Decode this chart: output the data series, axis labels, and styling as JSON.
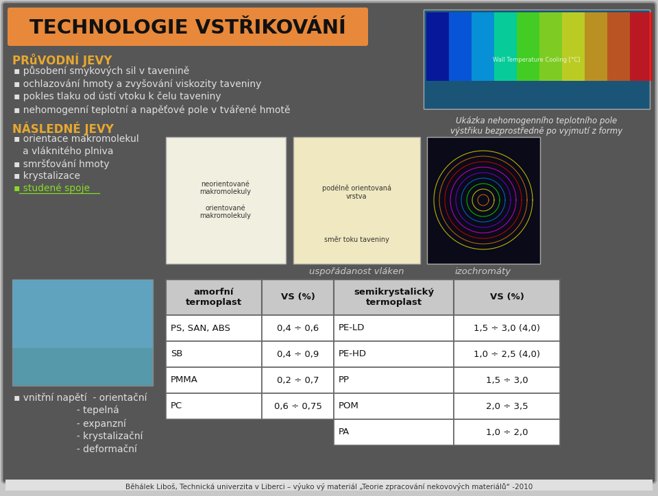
{
  "fig_w": 9.6,
  "fig_h": 7.24,
  "bg_outer": "#c8c8c8",
  "bg_main": "#565656",
  "bg_main_edge": "#999999",
  "title_text": "TECHNOLOGIE VSTŘIKOVÁNÍ",
  "title_bg": "#e8883a",
  "title_color": "#111111",
  "orange_label_color": "#e8a830",
  "white_text": "#e0e0e0",
  "green_link": "#88dd22",
  "section1_label": "PRůVODNÍ JEVY",
  "section1_items": [
    "působení smykových sil v tavenině",
    "ochlazování hmoty a zvyšování viskozity taveniny",
    "pokles tlaku od ústí vtoku k čelu taveniny",
    "nehomogenní teplotní a napěťové pole v tvářené hmotě"
  ],
  "section2_label": "NÁSLEDNÉ JEVY",
  "section3_lines": [
    "▪ vnitrní napětí  - orientační",
    "                     - tepelná",
    "                     - expanzní",
    "                     - krystalizační",
    "                     - deformační"
  ],
  "img_caption_tr": "Ukázka nehomogenního teplotního pole\nvýstřiku bezprostředně po vyjmutí z formy",
  "label_usporadanost": "uspořádanost vláken",
  "label_izochromaty": "izochromáty",
  "table_col1_hdr": "amorfní\ntermoplast",
  "table_col2_hdr": "VS (%)",
  "table_col3_hdr": "semikrystalic ký\ntermoplast",
  "table_col4_hdr": "VS (%)",
  "table_rows": [
    [
      "PS, SAN, ABS",
      "0,4 ÷ 0,6",
      "PE-LD",
      "1,5 ÷ 3,0 (4,0)"
    ],
    [
      "SB",
      "0,4 ÷ 0,9",
      "PE-HD",
      "1,0 ÷ 2,5 (4,0)"
    ],
    [
      "PMMA",
      "0,2 ÷ 0,7",
      "PP",
      "1,5 ÷ 3,0"
    ],
    [
      "PC",
      "0,6 ÷ 0,75",
      "POM",
      "2,0 ÷ 3,5"
    ],
    [
      "",
      "",
      "PA",
      "1,0 ÷ 2,0"
    ]
  ],
  "footer": "Běhálek Liboš, Technická univerzita v Liberci – výuko vý materiál „Teorie zpracování nekovových materiálů“ -2010",
  "table_hdr_bg": "#c8c8c8",
  "table_row_bgs": [
    "#ffffff",
    "#e8e8e8"
  ],
  "table_border": "#666666"
}
